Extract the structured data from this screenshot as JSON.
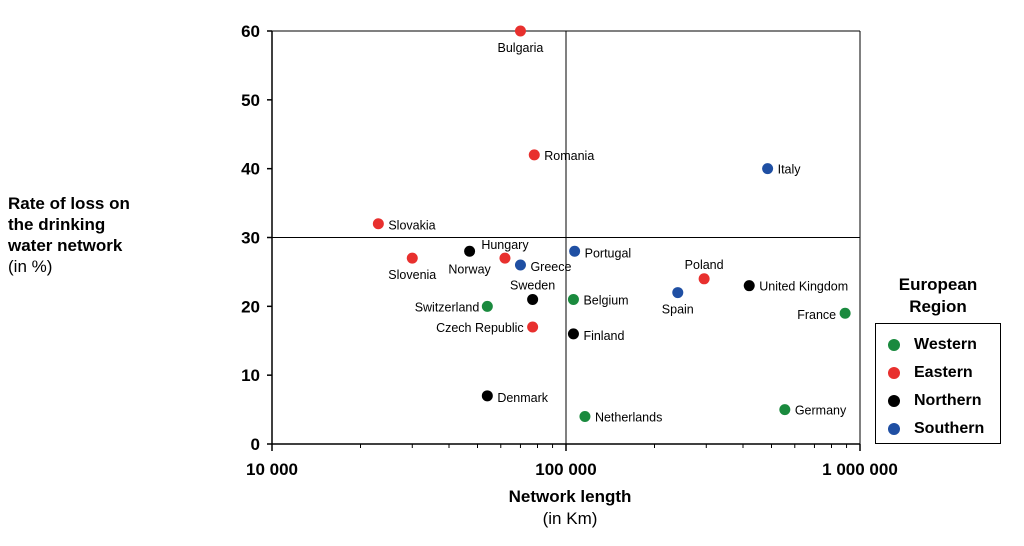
{
  "y_axis_label": {
    "line1": "Rate of loss on",
    "line2": "the drinking",
    "line3": "water network",
    "unit": "(in %)"
  },
  "x_axis_label": {
    "main": "Network length",
    "unit": "(in Km)"
  },
  "legend": {
    "title_line1": "European",
    "title_line2": "Region",
    "items": [
      {
        "label": "Western",
        "color": "#1a8a3e"
      },
      {
        "label": "Eastern",
        "color": "#e8302e"
      },
      {
        "label": "Northern",
        "color": "#000000"
      },
      {
        "label": "Southern",
        "color": "#1f4fa3"
      }
    ]
  },
  "chart_data": {
    "type": "scatter",
    "x_scale": "log",
    "xlim": [
      10000,
      1000000
    ],
    "ylim": [
      0,
      60
    ],
    "x_ticks": [
      {
        "value": 10000,
        "label": "10 000"
      },
      {
        "value": 100000,
        "label": "100 000"
      },
      {
        "value": 1000000,
        "label": "1 000 000"
      }
    ],
    "y_ticks": [
      0,
      10,
      20,
      30,
      40,
      50,
      60
    ],
    "reference_lines": {
      "x": 100000,
      "y": 30
    },
    "points": [
      {
        "label": "Bulgaria",
        "region": "Eastern",
        "x": 70000,
        "y": 60
      },
      {
        "label": "Romania",
        "region": "Eastern",
        "x": 78000,
        "y": 42
      },
      {
        "label": "Italy",
        "region": "Southern",
        "x": 485000,
        "y": 40
      },
      {
        "label": "Slovakia",
        "region": "Eastern",
        "x": 23000,
        "y": 32
      },
      {
        "label": "Hungary",
        "region": "Eastern",
        "x": 62000,
        "y": 27
      },
      {
        "label": "Norway",
        "region": "Northern",
        "x": 47000,
        "y": 28
      },
      {
        "label": "Slovenia",
        "region": "Eastern",
        "x": 30000,
        "y": 27
      },
      {
        "label": "Greece",
        "region": "Southern",
        "x": 70000,
        "y": 26
      },
      {
        "label": "Portugal",
        "region": "Southern",
        "x": 107000,
        "y": 28
      },
      {
        "label": "Poland",
        "region": "Eastern",
        "x": 295000,
        "y": 24
      },
      {
        "label": "United Kingdom",
        "region": "Northern",
        "x": 420000,
        "y": 23
      },
      {
        "label": "Sweden",
        "region": "Northern",
        "x": 77000,
        "y": 21
      },
      {
        "label": "Belgium",
        "region": "Western",
        "x": 106000,
        "y": 21
      },
      {
        "label": "Spain",
        "region": "Southern",
        "x": 240000,
        "y": 22
      },
      {
        "label": "Switzerland",
        "region": "Western",
        "x": 54000,
        "y": 20
      },
      {
        "label": "France",
        "region": "Western",
        "x": 890000,
        "y": 19
      },
      {
        "label": "Czech Republic",
        "region": "Eastern",
        "x": 77000,
        "y": 17
      },
      {
        "label": "Finland",
        "region": "Northern",
        "x": 106000,
        "y": 16
      },
      {
        "label": "Denmark",
        "region": "Northern",
        "x": 54000,
        "y": 7
      },
      {
        "label": "Netherlands",
        "region": "Western",
        "x": 116000,
        "y": 4
      },
      {
        "label": "Germany",
        "region": "Western",
        "x": 555000,
        "y": 5
      }
    ]
  }
}
